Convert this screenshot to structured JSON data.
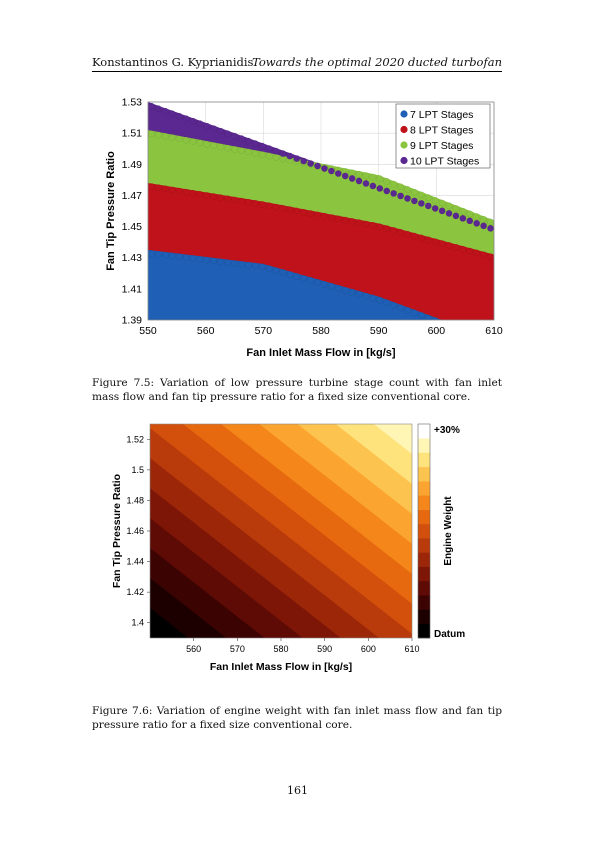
{
  "header": {
    "author": "Konstantinos G. Kyprianidis",
    "title": "Towards the optimal 2020 ducted turbofan"
  },
  "figure1": {
    "caption": "Figure 7.5: Variation of low pressure turbine stage count with fan inlet mass flow and fan tip pressure ratio for a fixed size conventional core.",
    "chart_data": {
      "type": "scatter",
      "xlabel": "Fan Inlet Mass Flow in [kg/s]",
      "ylabel": "Fan Tip Pressure Ratio",
      "xlim": [
        550,
        610
      ],
      "ylim": [
        1.39,
        1.53
      ],
      "xticks": [
        "550",
        "560",
        "570",
        "580",
        "590",
        "600",
        "610"
      ],
      "yticks": [
        "1.39",
        "1.41",
        "1.43",
        "1.45",
        "1.47",
        "1.49",
        "1.51",
        "1.53"
      ],
      "legend_position": "top-right",
      "series": [
        {
          "name": "7 LPT Stages",
          "color": "#1f5fb5",
          "upper_boundary": {
            "x": [
              550,
              570,
              590,
              601
            ],
            "y": [
              1.435,
              1.426,
              1.405,
              1.39
            ]
          }
        },
        {
          "name": "8 LPT Stages",
          "color": "#c0121a",
          "upper_boundary": {
            "x": [
              550,
              570,
              590,
              610
            ],
            "y": [
              1.478,
              1.466,
              1.452,
              1.432
            ]
          }
        },
        {
          "name": "9 LPT Stages",
          "color": "#8bc540",
          "upper_boundary": {
            "x": [
              550,
              570,
              590,
              610
            ],
            "y": [
              1.512,
              1.498,
              1.483,
              1.454
            ]
          }
        },
        {
          "name": "10 LPT Stages",
          "color": "#5b2790",
          "upper_boundary": {
            "x": [
              550,
              610
            ],
            "y": [
              1.53,
              1.45
            ]
          }
        }
      ]
    }
  },
  "figure2": {
    "caption": "Figure 7.6: Variation of engine weight with fan inlet mass flow and fan tip pressure ratio for a fixed size conventional core.",
    "chart_data": {
      "type": "heatmap",
      "xlabel": "Fan Inlet Mass Flow in [kg/s]",
      "ylabel": "Fan Tip Pressure Ratio",
      "xlim": [
        550,
        610
      ],
      "ylim": [
        1.39,
        1.53
      ],
      "xticks": [
        "560",
        "570",
        "580",
        "590",
        "600",
        "610"
      ],
      "yticks": [
        "1.4",
        "1.42",
        "1.44",
        "1.46",
        "1.48",
        "1.5",
        "1.52"
      ],
      "colorbar_label": "Engine Weight",
      "colorbar_top": "+30%",
      "colorbar_bottom": "Datum",
      "levels": 14,
      "colors": [
        "#000000",
        "#1c0000",
        "#3c0303",
        "#5e0a05",
        "#7d1607",
        "#9c2708",
        "#b93a0a",
        "#d24f0c",
        "#e6690f",
        "#f4861a",
        "#fba530",
        "#fdc34f",
        "#fee27c",
        "#fff6b5",
        "#ffffff"
      ]
    }
  },
  "page_number": "161"
}
